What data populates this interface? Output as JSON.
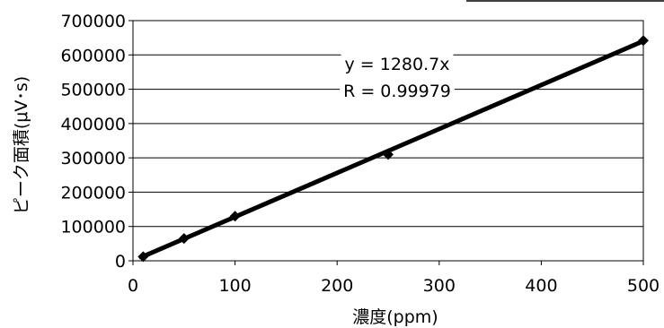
{
  "chart_data": {
    "type": "scatter",
    "xlabel": "濃度(ppm)",
    "ylabel": "ピーク面積(μV･s)",
    "xlim": [
      0,
      500
    ],
    "ylim": [
      0,
      700000
    ],
    "x_ticks": [
      0,
      100,
      200,
      300,
      400,
      500
    ],
    "y_ticks": [
      0,
      100000,
      200000,
      300000,
      400000,
      500000,
      600000,
      700000
    ],
    "x_tick_labels": [
      "0",
      "100",
      "200",
      "300",
      "400",
      "500"
    ],
    "y_tick_labels": [
      "0",
      "100000",
      "200000",
      "300000",
      "400000",
      "500000",
      "600000",
      "700000"
    ],
    "grid": "horizontal",
    "series": [
      {
        "x": [
          10,
          50,
          100,
          250,
          500
        ],
        "y": [
          12000,
          65000,
          130000,
          310000,
          642000
        ],
        "marker": "diamond",
        "color": "#000000"
      }
    ],
    "trendline": {
      "slope": 1280.7,
      "intercept": 0,
      "x_range": [
        0,
        500
      ],
      "color": "#000000"
    },
    "annotations": {
      "equation": "y = 1280.7x",
      "r_value": "R = 0.99979"
    }
  }
}
